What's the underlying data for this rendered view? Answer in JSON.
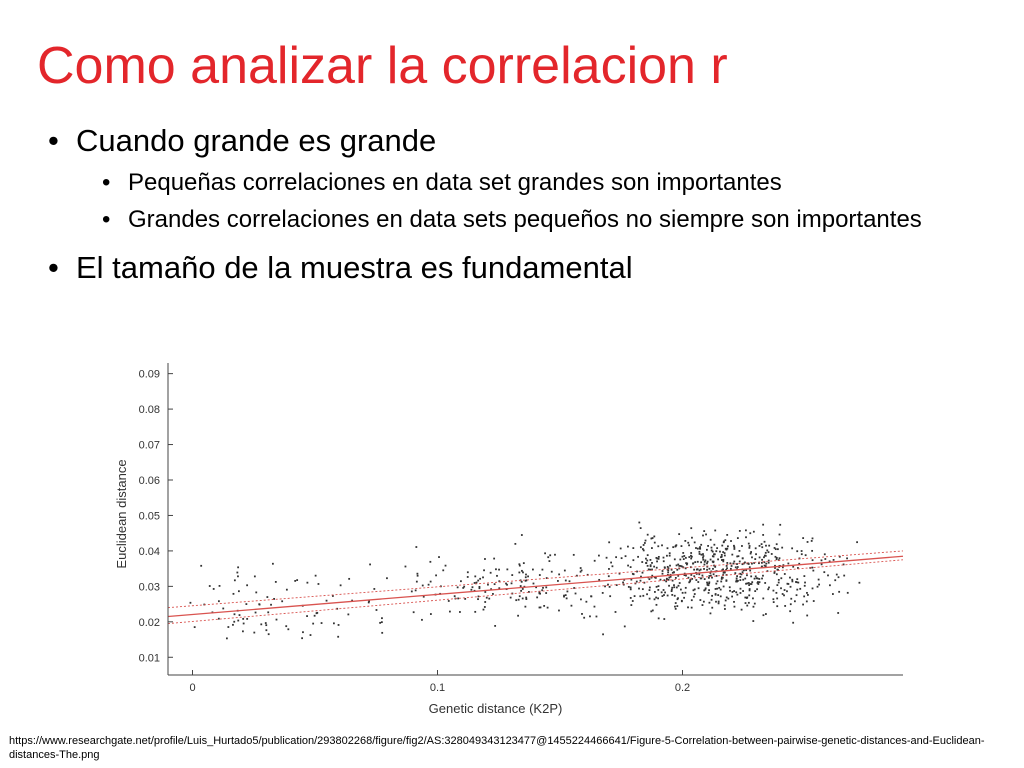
{
  "slide": {
    "title": "Como analizar la correlacion r",
    "bullet1": "Cuando grande es grande",
    "sub1": "Pequeñas correlaciones en data set grandes son importantes",
    "sub2": "Grandes correlaciones en data sets pequeños no siempre son importantes",
    "bullet2": "El tamaño de la muestra es fundamental",
    "source": "https://www.researchgate.net/profile/Luis_Hurtado5/publication/293802268/figure/fig2/AS:328049343123477@1455224466641/Figure-5-Correlation-between-pairwise-genetic-distances-and-Euclidean-distances-The.png"
  },
  "chart_data": {
    "type": "scatter",
    "xlabel": "Genetic distance (K2P)",
    "ylabel": "Euclidean distance",
    "xlim": [
      -0.01,
      0.29
    ],
    "ylim": [
      0.005,
      0.093
    ],
    "x_ticks": [
      0,
      0.1,
      0.2
    ],
    "x_tick_labels": [
      "0",
      "0.1",
      "0.2"
    ],
    "y_ticks": [
      0.01,
      0.02,
      0.03,
      0.04,
      0.05,
      0.06,
      0.07,
      0.08,
      0.09
    ],
    "y_tick_labels": [
      "0.01",
      "0.02",
      "0.03",
      "0.04",
      "0.05",
      "0.06",
      "0.07",
      "0.08",
      "0.09"
    ],
    "grid": false,
    "point_color": "#333333",
    "fit_line": {
      "x": [
        -0.01,
        0.29
      ],
      "y": [
        0.0215,
        0.0385
      ],
      "color": "#d9534f"
    },
    "confidence_band": {
      "x": [
        -0.01,
        0.29
      ],
      "y_lower": [
        0.0195,
        0.0375
      ],
      "y_upper": [
        0.024,
        0.04
      ],
      "color": "#d9534f"
    },
    "points_summary": {
      "count": 900,
      "clusters": [
        {
          "x_center": 0.215,
          "x_spread": 0.045,
          "y_center": 0.034,
          "y_spread": 0.011,
          "share": 0.7
        },
        {
          "x_center": 0.13,
          "x_spread": 0.06,
          "y_center": 0.03,
          "y_spread": 0.01,
          "share": 0.2
        },
        {
          "x_center": 0.03,
          "x_spread": 0.04,
          "y_center": 0.026,
          "y_spread": 0.01,
          "share": 0.1
        }
      ]
    }
  }
}
